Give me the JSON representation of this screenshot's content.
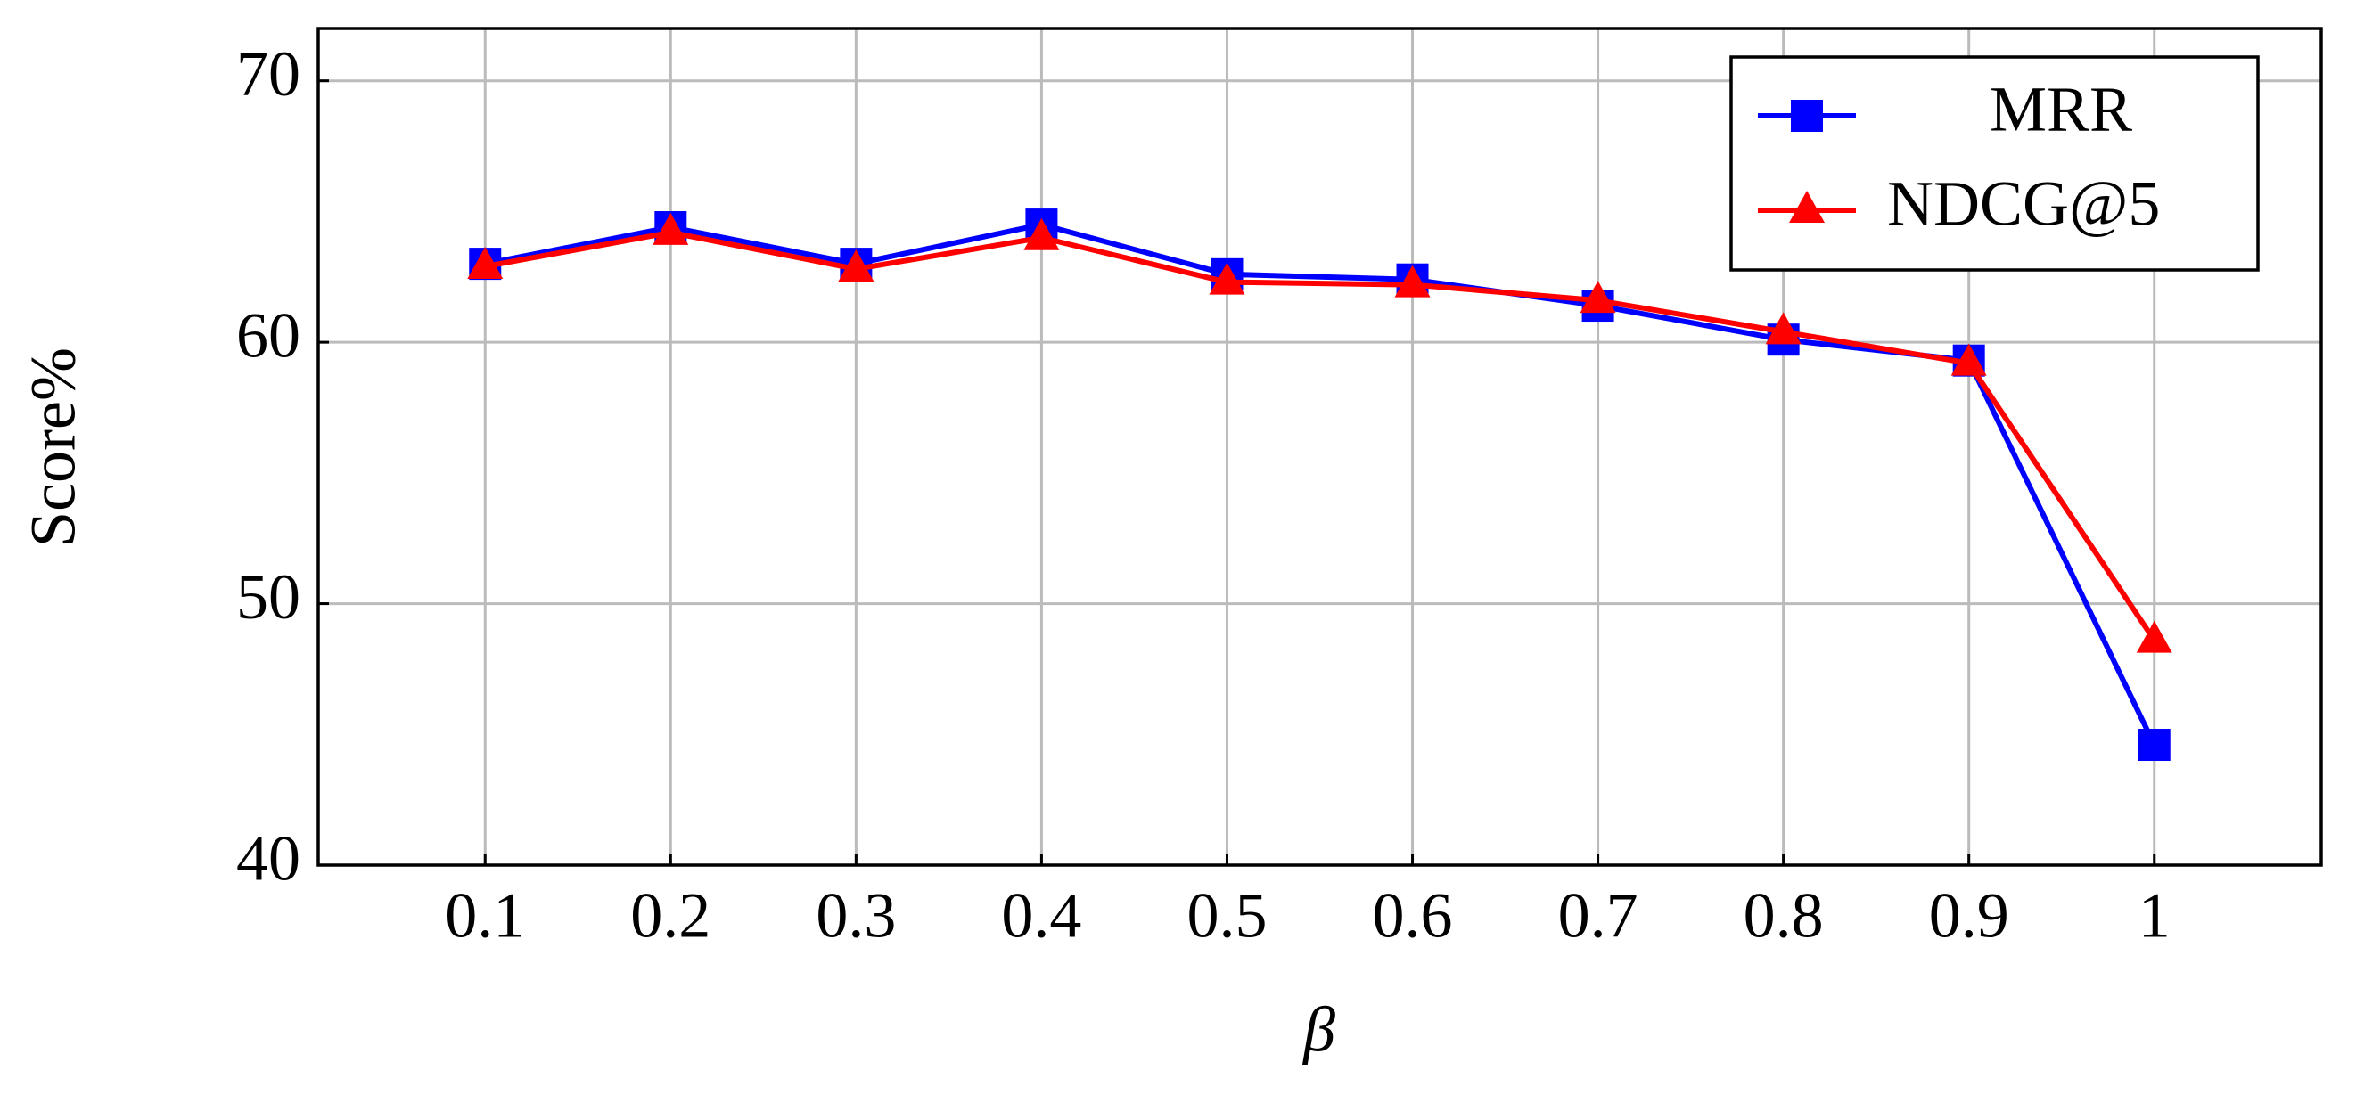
{
  "chart_data": {
    "type": "line",
    "x_label": "β",
    "y_label": "Score%",
    "x": [
      0.1,
      0.2,
      0.3,
      0.4,
      0.5,
      0.6,
      0.7,
      0.8,
      0.9,
      1
    ],
    "series": [
      {
        "name": "MRR",
        "color": "#0000ff",
        "marker": "square",
        "values": [
          63.0,
          64.4,
          63.0,
          64.5,
          62.6,
          62.4,
          61.4,
          60.1,
          59.3,
          44.6
        ]
      },
      {
        "name": "NDCG@5",
        "color": "#ff0000",
        "marker": "triangle",
        "values": [
          62.9,
          64.2,
          62.8,
          64.0,
          62.3,
          62.2,
          61.6,
          60.4,
          59.2,
          48.6
        ]
      }
    ],
    "xlim": [
      0.01,
      1.09
    ],
    "ylim": [
      40,
      72
    ],
    "xticks": [
      0.1,
      0.2,
      0.3,
      0.4,
      0.5,
      0.6,
      0.7,
      0.8,
      0.9,
      1
    ],
    "yticks": [
      40,
      50,
      60,
      70
    ],
    "grid": true,
    "legend": "upper right"
  }
}
